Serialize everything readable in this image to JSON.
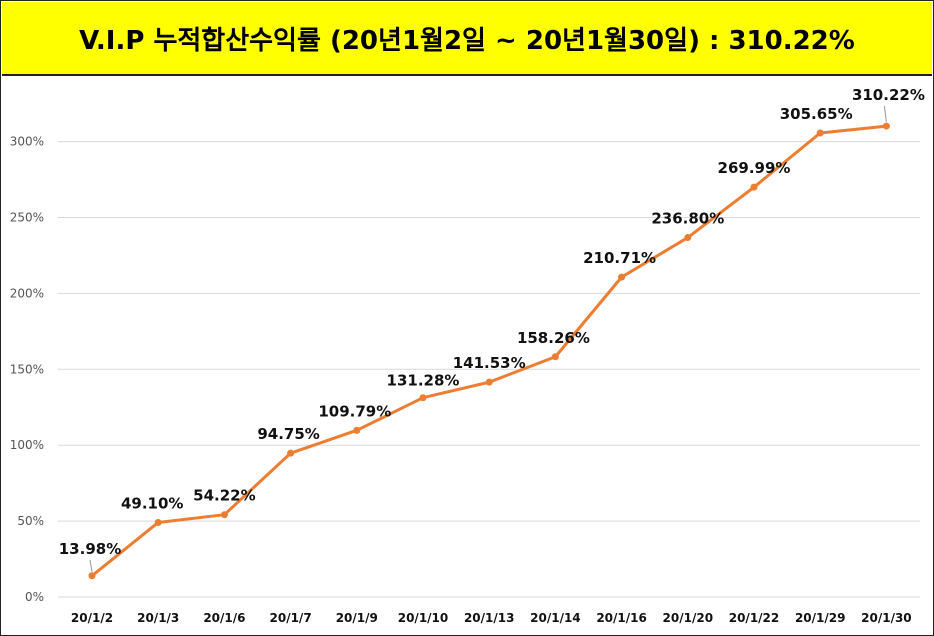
{
  "title": "V.I.P 누적합산수익률 (20년1월2일 ~ 20년1월30일) : 310.22%",
  "colors": {
    "title_background": "#ffff00",
    "line": "#ed7d31",
    "grid": "#d9d9d9"
  },
  "chart_data": {
    "type": "line",
    "categories": [
      "20/1/2",
      "20/1/3",
      "20/1/6",
      "20/1/7",
      "20/1/9",
      "20/1/10",
      "20/1/13",
      "20/1/14",
      "20/1/16",
      "20/1/20",
      "20/1/22",
      "20/1/29",
      "20/1/30"
    ],
    "series": [
      {
        "values": [
          13.98,
          49.1,
          54.22,
          94.75,
          109.79,
          131.28,
          141.53,
          158.26,
          210.71,
          236.8,
          269.99,
          305.65,
          310.22
        ]
      }
    ],
    "data_labels": [
      "13.98%",
      "49.10%",
      "54.22%",
      "94.75%",
      "109.79%",
      "131.28%",
      "141.53%",
      "158.26%",
      "210.71%",
      "236.80%",
      "269.99%",
      "305.65%",
      "310.22%"
    ],
    "y_ticks": [
      0,
      50,
      100,
      150,
      200,
      250,
      300
    ],
    "y_tick_labels": [
      "0%",
      "50%",
      "100%",
      "150%",
      "200%",
      "250%",
      "300%"
    ],
    "ylim": [
      0,
      350
    ],
    "grid": true,
    "legend": "none"
  }
}
